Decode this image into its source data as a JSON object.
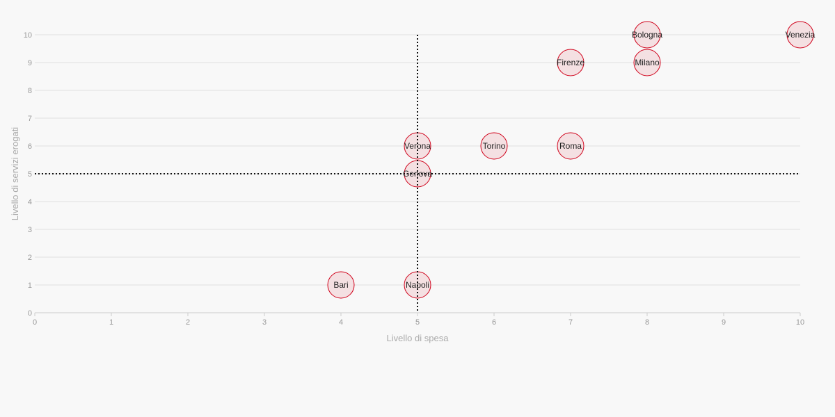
{
  "chart_data": {
    "type": "scatter",
    "xlabel": "Livello di spesa",
    "ylabel": "Livello di servizi erogati",
    "xlim": [
      0,
      10
    ],
    "ylim": [
      0,
      10
    ],
    "x_ticks": [
      "0",
      "1",
      "2",
      "3",
      "4",
      "5",
      "6",
      "7",
      "8",
      "9",
      "10"
    ],
    "y_ticks": [
      "0",
      "1",
      "2",
      "3",
      "4",
      "5",
      "6",
      "7",
      "8",
      "9",
      "10"
    ],
    "grid": "horizontal",
    "reference_lines": {
      "x": 5,
      "y": 5,
      "style": "dotted"
    },
    "colors": {
      "point_fill": "#f4e0e2",
      "point_stroke": "#d0021b",
      "grid": "#e0e0e0",
      "reference": "#111111",
      "background": "#f8f8f8"
    },
    "points": [
      {
        "label": "Venezia",
        "x": 10,
        "y": 10
      },
      {
        "label": "Bologna",
        "x": 8,
        "y": 10
      },
      {
        "label": "Milano",
        "x": 8,
        "y": 9
      },
      {
        "label": "Firenze",
        "x": 7,
        "y": 9
      },
      {
        "label": "Roma",
        "x": 7,
        "y": 6
      },
      {
        "label": "Torino",
        "x": 6,
        "y": 6
      },
      {
        "label": "Verona",
        "x": 5,
        "y": 6
      },
      {
        "label": "Genova",
        "x": 5,
        "y": 5
      },
      {
        "label": "Napoli",
        "x": 5,
        "y": 1
      },
      {
        "label": "Bari",
        "x": 4,
        "y": 1
      }
    ]
  }
}
